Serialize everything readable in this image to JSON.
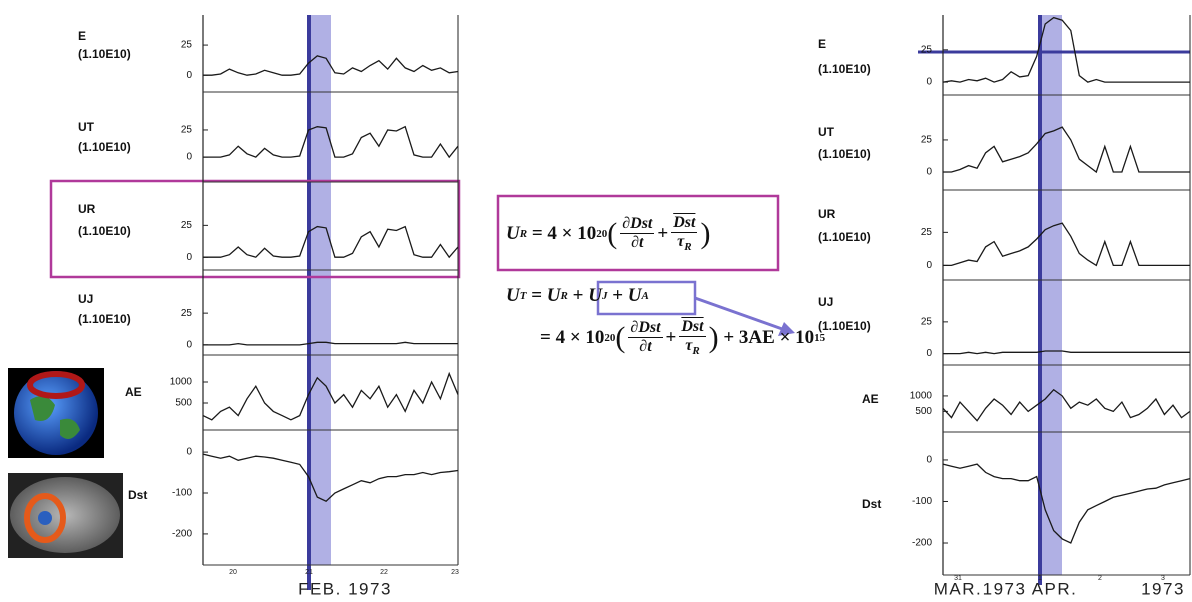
{
  "left_figure": {
    "panels": [
      {
        "label": "E",
        "unit": "(1.10E10)",
        "ylim": [
          -14,
          50
        ],
        "yticks": [
          0,
          25
        ],
        "values": [
          0,
          0,
          1,
          5,
          2,
          0,
          1,
          4,
          2,
          0,
          0,
          1,
          10,
          16,
          14,
          2,
          1,
          6,
          3,
          8,
          12,
          5,
          14,
          6,
          3,
          8,
          4,
          6,
          2,
          3
        ]
      },
      {
        "label": "UT",
        "unit": "(1.10E10)",
        "ylim": [
          -23,
          60
        ],
        "yticks": [
          0,
          25
        ],
        "values": [
          0,
          0,
          0,
          2,
          10,
          3,
          0,
          8,
          2,
          0,
          0,
          1,
          25,
          28,
          27,
          0,
          0,
          3,
          18,
          22,
          10,
          25,
          24,
          28,
          2,
          0,
          0,
          12,
          0,
          10
        ]
      },
      {
        "label": "UR",
        "unit": "(1.10E10)",
        "ylim": [
          -10,
          59
        ],
        "yticks": [
          0,
          25
        ],
        "values": [
          0,
          0,
          0,
          2,
          8,
          2,
          0,
          7,
          1,
          0,
          0,
          1,
          20,
          24,
          23,
          0,
          0,
          3,
          16,
          20,
          8,
          22,
          21,
          24,
          2,
          0,
          0,
          10,
          0,
          8
        ]
      },
      {
        "label": "UJ",
        "unit": "(1.10E10)",
        "ylim": [
          -8,
          59
        ],
        "yticks": [
          0,
          25
        ],
        "values": [
          0,
          0,
          0,
          0,
          1,
          0,
          0,
          0,
          0,
          0,
          0,
          0,
          1,
          2,
          2,
          1,
          1,
          1,
          1,
          1,
          1,
          1,
          1,
          2,
          1,
          1,
          1,
          1,
          1,
          1
        ]
      },
      {
        "label": "AE",
        "ylim": [
          -143,
          1643
        ],
        "yticks": [
          500,
          1000
        ],
        "values": [
          200,
          100,
          300,
          400,
          200,
          600,
          900,
          500,
          300,
          200,
          100,
          200,
          700,
          1100,
          900,
          500,
          700,
          400,
          800,
          600,
          900,
          400,
          700,
          300,
          800,
          500,
          1000,
          600,
          1200,
          700
        ]
      },
      {
        "label": "Dst",
        "ylim": [
          -276,
          54
        ],
        "yticks": [
          -200,
          -100,
          0
        ],
        "values": [
          -5,
          -10,
          -15,
          -10,
          -20,
          -15,
          -10,
          -12,
          -15,
          -20,
          -25,
          -30,
          -60,
          -110,
          -120,
          -100,
          -90,
          -80,
          -70,
          -75,
          -65,
          -60,
          -60,
          -55,
          -55,
          -50,
          -55,
          -50,
          -48,
          -45
        ]
      }
    ],
    "day_labels": [
      "20",
      "21",
      "22",
      "23"
    ],
    "date_labels": [
      "FEB. 1973"
    ]
  },
  "right_figure": {
    "panels": [
      {
        "label": "E",
        "unit": "(1.10E10)",
        "ylim": [
          -10,
          52
        ],
        "yticks": [
          0,
          25
        ],
        "values": [
          0,
          1,
          0,
          2,
          1,
          3,
          0,
          2,
          8,
          4,
          5,
          20,
          45,
          50,
          48,
          40,
          5,
          0,
          2,
          0,
          0,
          0,
          0,
          0,
          0,
          0,
          0,
          0,
          0,
          0
        ]
      },
      {
        "label": "UT",
        "unit": "(1.10E10)",
        "ylim": [
          -14,
          60
        ],
        "yticks": [
          0,
          25
        ],
        "values": [
          0,
          0,
          2,
          5,
          3,
          15,
          20,
          8,
          10,
          12,
          15,
          22,
          30,
          32,
          35,
          25,
          10,
          5,
          0,
          20,
          0,
          0,
          20,
          0,
          0,
          0,
          0,
          0,
          0,
          0
        ]
      },
      {
        "label": "UR",
        "unit": "(1.10E10)",
        "ylim": [
          -11,
          57
        ],
        "yticks": [
          0,
          25
        ],
        "values": [
          0,
          0,
          2,
          4,
          3,
          14,
          18,
          7,
          9,
          11,
          14,
          20,
          27,
          30,
          32,
          22,
          9,
          4,
          0,
          18,
          0,
          0,
          18,
          0,
          0,
          0,
          0,
          0,
          0,
          0
        ]
      },
      {
        "label": "UJ",
        "unit": "(1.10E10)",
        "ylim": [
          -9,
          58
        ],
        "yticks": [
          0,
          25
        ],
        "values": [
          0,
          0,
          0,
          1,
          0,
          1,
          0,
          1,
          1,
          1,
          1,
          1,
          2,
          2,
          2,
          1,
          1,
          1,
          1,
          1,
          1,
          1,
          1,
          1,
          1,
          1,
          1,
          1,
          1,
          1
        ]
      },
      {
        "label": "AE",
        "ylim": [
          -167,
          2000
        ],
        "yticks": [
          500,
          1000
        ],
        "values": [
          600,
          300,
          800,
          500,
          200,
          600,
          900,
          700,
          400,
          800,
          500,
          700,
          900,
          1200,
          1000,
          600,
          800,
          700,
          900,
          600,
          500,
          800,
          300,
          400,
          600,
          900,
          400,
          700,
          300,
          500
        ]
      },
      {
        "label": "Dst",
        "ylim": [
          -277,
          48
        ],
        "yticks": [
          -200,
          -100,
          0
        ],
        "values": [
          -10,
          -15,
          -20,
          -15,
          -10,
          -30,
          -40,
          -45,
          -45,
          -50,
          -50,
          -40,
          -120,
          -170,
          -190,
          -200,
          -150,
          -120,
          -110,
          -100,
          -90,
          -85,
          -80,
          -75,
          -70,
          -68,
          -60,
          -55,
          -50,
          -45
        ]
      }
    ],
    "day_labels": [
      "31",
      "1",
      "2",
      "3"
    ],
    "date_labels": [
      "MAR.",
      "1973 APR.",
      "1973"
    ]
  },
  "equations": {
    "ur": {
      "u": "U",
      "u_sub": "R",
      "eq": " = 4 × 10",
      "exp": "20",
      "open": "(",
      "d_num": "∂Dst",
      "d_den": "∂t",
      "plus": "+",
      "r_num": "Dst",
      "r_den": "τ",
      "r_den_sub": "R",
      "close": ")"
    },
    "ut": {
      "u": "U",
      "u_sub": "T",
      "eq": " = ",
      "ur": "U",
      "ur_sub": "R",
      "plus1": " + ",
      "uj": "U",
      "uj_sub": "J",
      "plus2": " + ",
      "ua": "U",
      "ua_sub": "A"
    },
    "expanded": {
      "eq": "= 4 × 10",
      "exp": "20",
      "open": "(",
      "d_num": "∂Dst",
      "d_den": "∂t",
      "plus": "+",
      "r_num": "Dst",
      "r_den": "τ",
      "r_den_sub": "R",
      "close": ")",
      "tail": " + 3AE × 10",
      "tail_exp": "15"
    }
  }
}
